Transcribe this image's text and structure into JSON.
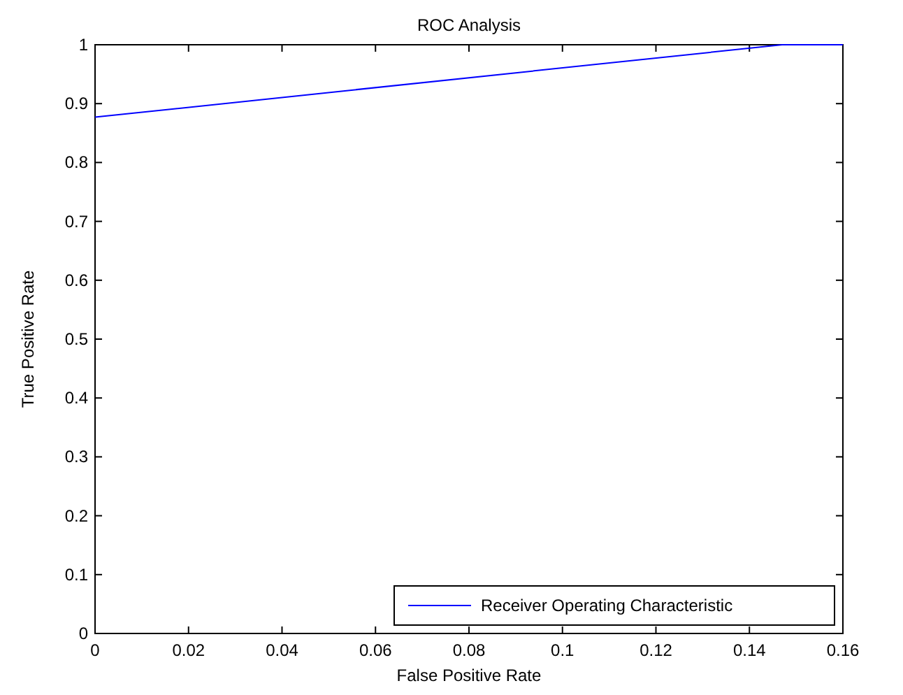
{
  "chart_data": {
    "type": "line",
    "title": "ROC Analysis",
    "xlabel": "False Positive Rate",
    "ylabel": "True Positive Rate",
    "series": [
      {
        "name": "Receiver Operating Characteristic",
        "color": "#0000ff",
        "x": [
          0,
          0.147,
          0.16
        ],
        "values": [
          0.877,
          1,
          1
        ]
      }
    ],
    "xlim": [
      0,
      0.16
    ],
    "xticks": [
      0,
      0.02,
      0.04,
      0.06,
      0.08,
      0.1,
      0.12,
      0.14,
      0.16
    ],
    "ylim": [
      0,
      1
    ],
    "yticks": [
      0,
      0.1,
      0.2,
      0.3,
      0.4,
      0.5,
      0.6,
      0.7,
      0.8,
      0.9,
      1
    ],
    "legend": "bottom right",
    "grid": false
  }
}
